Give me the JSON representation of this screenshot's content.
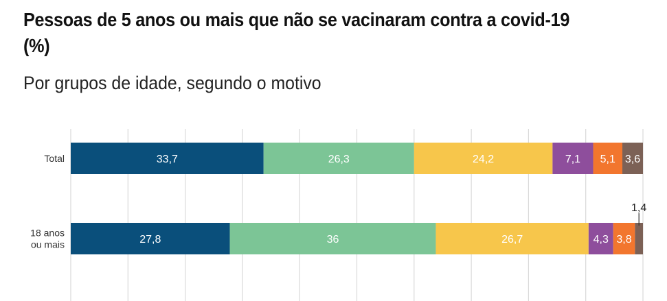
{
  "chart_data": {
    "type": "bar",
    "orientation": "horizontal",
    "stacked": true,
    "title": "Pessoas de 5 anos ou mais que não se vacinaram contra a covid-19 (%)",
    "subtitle": "Por grupos de idade, segundo o motivo",
    "categories": [
      "Total",
      "18 anos\nou mais"
    ],
    "series": [
      {
        "color": "#0a4f7b",
        "values": [
          33.7,
          27.8
        ],
        "labels": [
          "33,7",
          "27,8"
        ]
      },
      {
        "color": "#7cc596",
        "values": [
          26.3,
          36.0
        ],
        "labels": [
          "26,3",
          "36"
        ]
      },
      {
        "color": "#f7c64b",
        "values": [
          24.2,
          26.7
        ],
        "labels": [
          "24,2",
          "26,7"
        ]
      },
      {
        "color": "#8e4e9c",
        "values": [
          7.1,
          4.3
        ],
        "labels": [
          "7,1",
          "4,3"
        ]
      },
      {
        "color": "#f2762e",
        "values": [
          5.1,
          3.8
        ],
        "labels": [
          "5,1",
          "3,8"
        ]
      },
      {
        "color": "#7c6156",
        "values": [
          3.6,
          1.4
        ],
        "labels": [
          "3,6",
          "1,4"
        ]
      }
    ],
    "xlim": [
      0,
      100
    ],
    "grid": true
  }
}
